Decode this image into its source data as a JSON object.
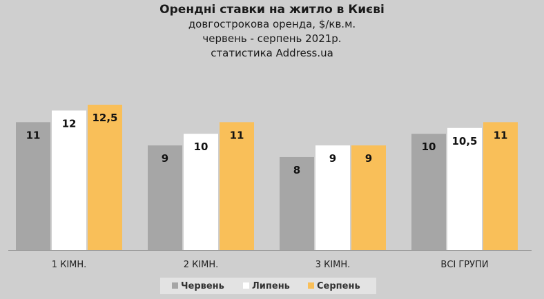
{
  "chart_data": {
    "type": "bar",
    "title": "Орендні ставки на житло в Києві",
    "subtitle_lines": [
      "довгострокова оренда, $/кв.м.",
      "червень - серпень 2021р.",
      "статистика Address.ua"
    ],
    "categories": [
      "1 КІМН.",
      "2 КІМН.",
      "3 КІМН.",
      "ВСІ ГРУПИ"
    ],
    "series": [
      {
        "name": "Червень",
        "color": "#a6a6a6",
        "values": [
          11,
          9,
          8,
          10
        ],
        "labels": [
          "11",
          "9",
          "8",
          "10"
        ]
      },
      {
        "name": "Липень",
        "color": "#ffffff",
        "values": [
          12,
          10,
          9,
          10.5
        ],
        "labels": [
          "12",
          "10",
          "9",
          "10,5"
        ]
      },
      {
        "name": "Серпень",
        "color": "#f9bf59",
        "values": [
          12.5,
          11,
          9,
          11
        ],
        "labels": [
          "12,5",
          "11",
          "9",
          "11"
        ]
      }
    ],
    "ylim": [
      0,
      12.5
    ],
    "grid": false,
    "legend_position": "bottom",
    "xlabel": "",
    "ylabel": ""
  }
}
